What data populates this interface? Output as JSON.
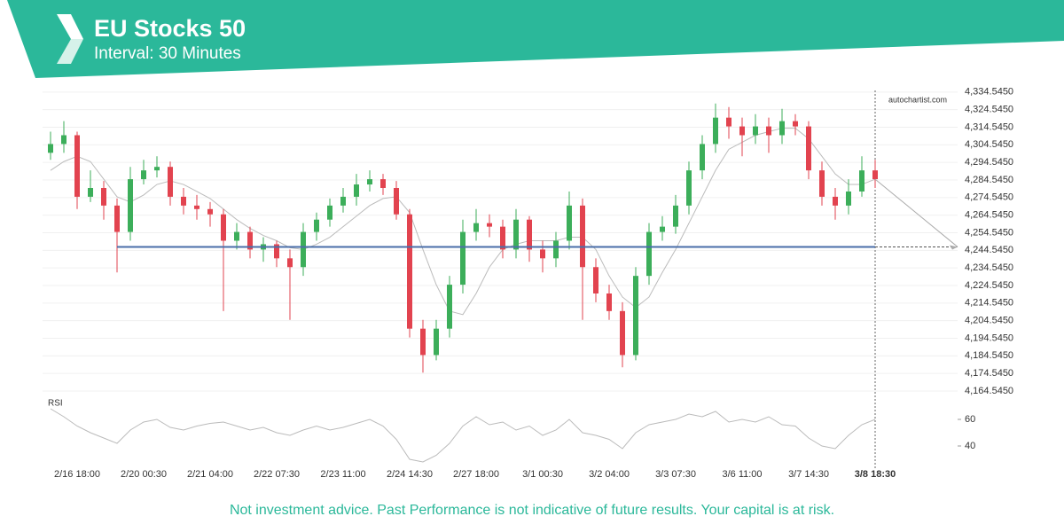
{
  "chart_data": {
    "type": "candlestick",
    "title": "EU Stocks 50",
    "subtitle": "Interval: 30 Minutes",
    "source": "autochartist.com",
    "disclaimer": "Not investment advice. Past Performance is not indicative of future results. Your capital is at risk.",
    "categories": [
      null,
      null,
      "2/16 18:00",
      null,
      null,
      null,
      null,
      "2/20 00:30",
      null,
      null,
      null,
      null,
      "2/21 04:00",
      null,
      null,
      null,
      null,
      "2/22 07:30",
      null,
      null,
      null,
      null,
      "2/23 11:00",
      null,
      null,
      null,
      null,
      "2/24 14:30",
      null,
      null,
      null,
      null,
      "2/27 18:00",
      null,
      null,
      null,
      null,
      "3/1 00:30",
      null,
      null,
      null,
      null,
      "3/2 04:00",
      null,
      null,
      null,
      null,
      "3/3 07:30",
      null,
      null,
      null,
      null,
      "3/6 11:00",
      null,
      null,
      null,
      null,
      "3/7 14:30",
      null,
      null,
      null,
      null,
      "3/8 18:30"
    ],
    "open": [
      4300,
      4305,
      4310,
      4275,
      4280,
      4270,
      4255,
      4285,
      4290,
      4292,
      4275,
      4270,
      4268,
      4265,
      4250,
      4255,
      4245,
      4248,
      4240,
      4235,
      4255,
      4262,
      4270,
      4275,
      4282,
      4285,
      4280,
      4265,
      4200,
      4185,
      4200,
      4225,
      4255,
      4260,
      4258,
      4245,
      4262,
      4245,
      4240,
      4250,
      4270,
      4235,
      4220,
      4210,
      4185,
      4230,
      4255,
      4258,
      4270,
      4290,
      4305,
      4320,
      4315,
      4310,
      4315,
      4310,
      4318,
      4315,
      4290,
      4275,
      4270,
      4278,
      4290
    ],
    "high": [
      4312,
      4318,
      4312,
      4290,
      4284,
      4274,
      4292,
      4296,
      4298,
      4295,
      4280,
      4276,
      4272,
      4268,
      4260,
      4258,
      4252,
      4250,
      4245,
      4260,
      4266,
      4274,
      4280,
      4288,
      4290,
      4288,
      4284,
      4268,
      4205,
      4205,
      4230,
      4262,
      4268,
      4265,
      4262,
      4268,
      4264,
      4250,
      4255,
      4278,
      4274,
      4240,
      4225,
      4215,
      4235,
      4260,
      4264,
      4276,
      4295,
      4310,
      4328,
      4326,
      4320,
      4322,
      4320,
      4325,
      4322,
      4318,
      4295,
      4280,
      4285,
      4298,
      4296
    ],
    "low": [
      4296,
      4300,
      4268,
      4272,
      4262,
      4232,
      4250,
      4282,
      4286,
      4270,
      4265,
      4262,
      4258,
      4210,
      4245,
      4240,
      4238,
      4235,
      4205,
      4230,
      4250,
      4258,
      4266,
      4270,
      4278,
      4276,
      4262,
      4195,
      4175,
      4182,
      4195,
      4220,
      4250,
      4252,
      4240,
      4240,
      4238,
      4232,
      4235,
      4245,
      4205,
      4215,
      4205,
      4178,
      4182,
      4225,
      4250,
      4254,
      4265,
      4285,
      4300,
      4308,
      4298,
      4305,
      4300,
      4305,
      4310,
      4285,
      4270,
      4262,
      4265,
      4275,
      4280
    ],
    "close": [
      4305,
      4310,
      4275,
      4280,
      4270,
      4255,
      4285,
      4290,
      4292,
      4275,
      4270,
      4268,
      4265,
      4250,
      4255,
      4245,
      4248,
      4240,
      4235,
      4255,
      4262,
      4270,
      4275,
      4282,
      4285,
      4280,
      4265,
      4200,
      4185,
      4200,
      4225,
      4255,
      4260,
      4258,
      4245,
      4262,
      4245,
      4240,
      4250,
      4270,
      4235,
      4220,
      4210,
      4185,
      4230,
      4255,
      4258,
      4270,
      4290,
      4305,
      4320,
      4315,
      4310,
      4315,
      4310,
      4318,
      4315,
      4290,
      4275,
      4270,
      4278,
      4290,
      4285
    ],
    "up_color": "#3cae5a",
    "down_color": "#e2434f",
    "sma": [
      4290,
      4295,
      4298,
      4295,
      4285,
      4275,
      4272,
      4276,
      4282,
      4284,
      4282,
      4278,
      4274,
      4268,
      4262,
      4257,
      4253,
      4250,
      4246,
      4245,
      4248,
      4252,
      4258,
      4264,
      4270,
      4274,
      4275,
      4266,
      4245,
      4225,
      4210,
      4208,
      4220,
      4235,
      4245,
      4248,
      4250,
      4250,
      4250,
      4252,
      4252,
      4245,
      4230,
      4218,
      4212,
      4218,
      4232,
      4245,
      4260,
      4275,
      4290,
      4302,
      4306,
      4310,
      4312,
      4314,
      4314,
      4308,
      4298,
      4288,
      4282,
      4282,
      4285
    ],
    "level": 4246.5,
    "level_color": "#4a6ea8",
    "ylim": [
      4160,
      4340
    ],
    "yticks": [
      {
        "value": 4164.545,
        "label": "4,164.5450"
      },
      {
        "value": 4174.545,
        "label": "4,174.5450"
      },
      {
        "value": 4184.545,
        "label": "4,184.5450"
      },
      {
        "value": 4194.545,
        "label": "4,194.5450"
      },
      {
        "value": 4204.545,
        "label": "4,204.5450"
      },
      {
        "value": 4214.545,
        "label": "4,214.5450"
      },
      {
        "value": 4224.545,
        "label": "4,224.5450"
      },
      {
        "value": 4234.545,
        "label": "4,234.5450"
      },
      {
        "value": 4244.545,
        "label": "4,244.5450"
      },
      {
        "value": 4254.545,
        "label": "4,254.5450"
      },
      {
        "value": 4264.545,
        "label": "4,264.5450"
      },
      {
        "value": 4274.545,
        "label": "4,274.5450"
      },
      {
        "value": 4284.545,
        "label": "4,284.5450"
      },
      {
        "value": 4294.545,
        "label": "4,294.5450"
      },
      {
        "value": 4304.545,
        "label": "4,304.5450"
      },
      {
        "value": 4314.545,
        "label": "4,314.5450"
      },
      {
        "value": 4324.545,
        "label": "4,324.5450"
      },
      {
        "value": 4334.545,
        "label": "4,334.5450"
      }
    ],
    "grid": true,
    "rsi": {
      "label": "RSI",
      "values": [
        68,
        62,
        55,
        50,
        46,
        42,
        52,
        58,
        60,
        54,
        52,
        55,
        57,
        58,
        55,
        52,
        54,
        50,
        48,
        52,
        55,
        52,
        54,
        57,
        60,
        55,
        45,
        30,
        28,
        33,
        42,
        55,
        62,
        56,
        58,
        52,
        55,
        48,
        52,
        60,
        50,
        48,
        45,
        38,
        50,
        56,
        58,
        60,
        64,
        62,
        66,
        58,
        60,
        58,
        62,
        56,
        55,
        46,
        40,
        38,
        48,
        56,
        60
      ],
      "ylim": [
        20,
        80
      ],
      "yticks": [
        40,
        60
      ]
    }
  }
}
